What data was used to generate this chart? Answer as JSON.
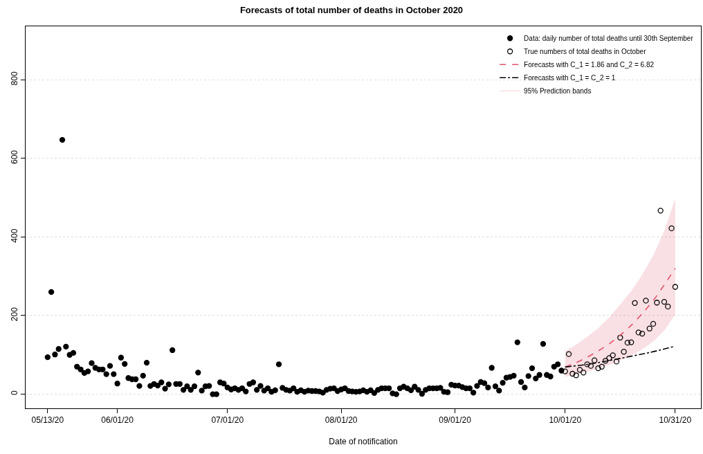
{
  "chart_data": {
    "type": "scatter",
    "title": "Forecasts of total number of deaths in October 2020",
    "xlabel": "Date of notification",
    "xlim": [
      "2020-05-07",
      "2020-11-07"
    ],
    "ylim": [
      -36,
      936
    ],
    "xticks": [
      {
        "value": "2020-05-13",
        "label": "05/13/20"
      },
      {
        "value": "2020-06-01",
        "label": "06/01/20"
      },
      {
        "value": "2020-07-01",
        "label": "07/01/20"
      },
      {
        "value": "2020-08-01",
        "label": "08/01/20"
      },
      {
        "value": "2020-09-01",
        "label": "09/01/20"
      },
      {
        "value": "2020-10-01",
        "label": "10/01/20"
      },
      {
        "value": "2020-10-31",
        "label": "10/31/20"
      }
    ],
    "yticks": [
      0,
      200,
      400,
      600,
      800
    ],
    "grid": "y",
    "legend": "top right",
    "annotations": [
      "95% Prediction bands"
    ],
    "series": [
      {
        "name": "Data: daily number of total deaths until 30th September",
        "color": "#000000",
        "marker": "circle",
        "x": [
          "2020-05-13",
          "2020-05-14",
          "2020-05-15",
          "2020-05-16",
          "2020-05-17",
          "2020-05-18",
          "2020-05-19",
          "2020-05-20",
          "2020-05-21",
          "2020-05-22",
          "2020-05-23",
          "2020-05-24",
          "2020-05-25",
          "2020-05-26",
          "2020-05-27",
          "2020-05-28",
          "2020-05-29",
          "2020-05-30",
          "2020-05-31",
          "2020-06-01",
          "2020-06-02",
          "2020-06-03",
          "2020-06-04",
          "2020-06-05",
          "2020-06-06",
          "2020-06-07",
          "2020-06-08",
          "2020-06-09",
          "2020-06-10",
          "2020-06-11",
          "2020-06-12",
          "2020-06-13",
          "2020-06-14",
          "2020-06-15",
          "2020-06-16",
          "2020-06-17",
          "2020-06-18",
          "2020-06-19",
          "2020-06-20",
          "2020-06-21",
          "2020-06-22",
          "2020-06-23",
          "2020-06-24",
          "2020-06-25",
          "2020-06-26",
          "2020-06-27",
          "2020-06-28",
          "2020-06-29",
          "2020-06-30",
          "2020-07-01",
          "2020-07-02",
          "2020-07-03",
          "2020-07-04",
          "2020-07-05",
          "2020-07-06",
          "2020-07-07",
          "2020-07-08",
          "2020-07-09",
          "2020-07-10",
          "2020-07-11",
          "2020-07-12",
          "2020-07-13",
          "2020-07-14",
          "2020-07-15",
          "2020-07-16",
          "2020-07-17",
          "2020-07-18",
          "2020-07-19",
          "2020-07-20",
          "2020-07-21",
          "2020-07-22",
          "2020-07-23",
          "2020-07-24",
          "2020-07-25",
          "2020-07-26",
          "2020-07-27",
          "2020-07-28",
          "2020-07-29",
          "2020-07-30",
          "2020-07-31",
          "2020-08-01",
          "2020-08-02",
          "2020-08-03",
          "2020-08-04",
          "2020-08-05",
          "2020-08-06",
          "2020-08-07",
          "2020-08-08",
          "2020-08-09",
          "2020-08-10",
          "2020-08-11",
          "2020-08-12",
          "2020-08-13",
          "2020-08-14",
          "2020-08-15",
          "2020-08-16",
          "2020-08-17",
          "2020-08-18",
          "2020-08-19",
          "2020-08-20",
          "2020-08-21",
          "2020-08-22",
          "2020-08-23",
          "2020-08-24",
          "2020-08-25",
          "2020-08-26",
          "2020-08-27",
          "2020-08-28",
          "2020-08-29",
          "2020-08-30",
          "2020-08-31",
          "2020-09-01",
          "2020-09-02",
          "2020-09-03",
          "2020-09-04",
          "2020-09-05",
          "2020-09-06",
          "2020-09-07",
          "2020-09-08",
          "2020-09-09",
          "2020-09-10",
          "2020-09-11",
          "2020-09-12",
          "2020-09-13",
          "2020-09-14",
          "2020-09-15",
          "2020-09-16",
          "2020-09-17",
          "2020-09-18",
          "2020-09-19",
          "2020-09-20",
          "2020-09-21",
          "2020-09-22",
          "2020-09-23",
          "2020-09-24",
          "2020-09-25",
          "2020-09-26",
          "2020-09-27",
          "2020-09-28",
          "2020-09-29",
          "2020-09-30"
        ],
        "values": [
          94,
          260,
          101,
          115,
          647,
          121,
          100,
          105,
          70,
          63,
          54,
          58,
          79,
          67,
          63,
          63,
          51,
          72,
          51,
          27,
          93,
          77,
          41,
          38,
          38,
          21,
          47,
          80,
          21,
          26,
          22,
          30,
          14,
          25,
          112,
          26,
          26,
          11,
          20,
          11,
          20,
          55,
          9,
          20,
          21,
          0,
          0,
          30,
          27,
          17,
          12,
          15,
          11,
          15,
          7,
          26,
          30,
          11,
          21,
          9,
          15,
          6,
          10,
          76,
          16,
          11,
          9,
          15,
          6,
          10,
          6,
          9,
          8,
          8,
          7,
          4,
          11,
          14,
          15,
          8,
          12,
          15,
          8,
          7,
          6,
          7,
          10,
          6,
          10,
          3,
          11,
          15,
          15,
          15,
          2,
          0,
          15,
          19,
          15,
          10,
          19,
          11,
          1,
          11,
          15,
          15,
          15,
          16,
          6,
          5,
          24,
          22,
          22,
          18,
          15,
          15,
          4,
          21,
          31,
          28,
          17,
          67,
          20,
          9,
          29,
          42,
          44,
          47,
          132,
          31,
          17,
          46,
          66,
          40,
          49,
          128,
          49,
          45,
          70,
          76,
          60
        ]
      },
      {
        "name": "True numbers of total deaths in October",
        "color": "#000000",
        "marker": "circle-open",
        "x": [
          "2020-10-01",
          "2020-10-02",
          "2020-10-03",
          "2020-10-04",
          "2020-10-05",
          "2020-10-06",
          "2020-10-07",
          "2020-10-08",
          "2020-10-09",
          "2020-10-10",
          "2020-10-11",
          "2020-10-12",
          "2020-10-13",
          "2020-10-14",
          "2020-10-15",
          "2020-10-16",
          "2020-10-17",
          "2020-10-18",
          "2020-10-19",
          "2020-10-20",
          "2020-10-21",
          "2020-10-22",
          "2020-10-23",
          "2020-10-24",
          "2020-10-25",
          "2020-10-26",
          "2020-10-27",
          "2020-10-28",
          "2020-10-29",
          "2020-10-30",
          "2020-10-31"
        ],
        "values": [
          58,
          102,
          52,
          48,
          62,
          55,
          76,
          72,
          86,
          66,
          70,
          85,
          92,
          99,
          83,
          144,
          108,
          131,
          132,
          232,
          157,
          154,
          238,
          167,
          179,
          233,
          467,
          235,
          223,
          422,
          273
        ]
      },
      {
        "type": "line",
        "name": "Forecasts with C_1 = 1.86 and C_2 = 6.82",
        "color": "#df536b",
        "line_style": "dashed",
        "x": [
          "2020-10-01",
          "2020-10-04",
          "2020-10-07",
          "2020-10-10",
          "2020-10-13",
          "2020-10-16",
          "2020-10-19",
          "2020-10-22",
          "2020-10-25",
          "2020-10-28",
          "2020-10-31"
        ],
        "values": [
          69,
          80,
          94,
          110,
          128,
          150,
          175,
          205,
          238,
          278,
          320
        ],
        "lower": [
          44,
          50,
          57,
          65,
          74,
          85,
          98,
          114,
          134,
          162,
          202
        ],
        "upper": [
          110,
          126,
          146,
          168,
          195,
          228,
          262,
          304,
          353,
          415,
          498
        ]
      },
      {
        "type": "line",
        "name": "Forecasts with C_1 = C_2 = 1",
        "color": "#000000",
        "line_style": "dashdot",
        "x": [
          "2020-10-01",
          "2020-10-08",
          "2020-10-16",
          "2020-10-24",
          "2020-10-31"
        ],
        "values": [
          69,
          77,
          91,
          106,
          122
        ]
      }
    ]
  }
}
